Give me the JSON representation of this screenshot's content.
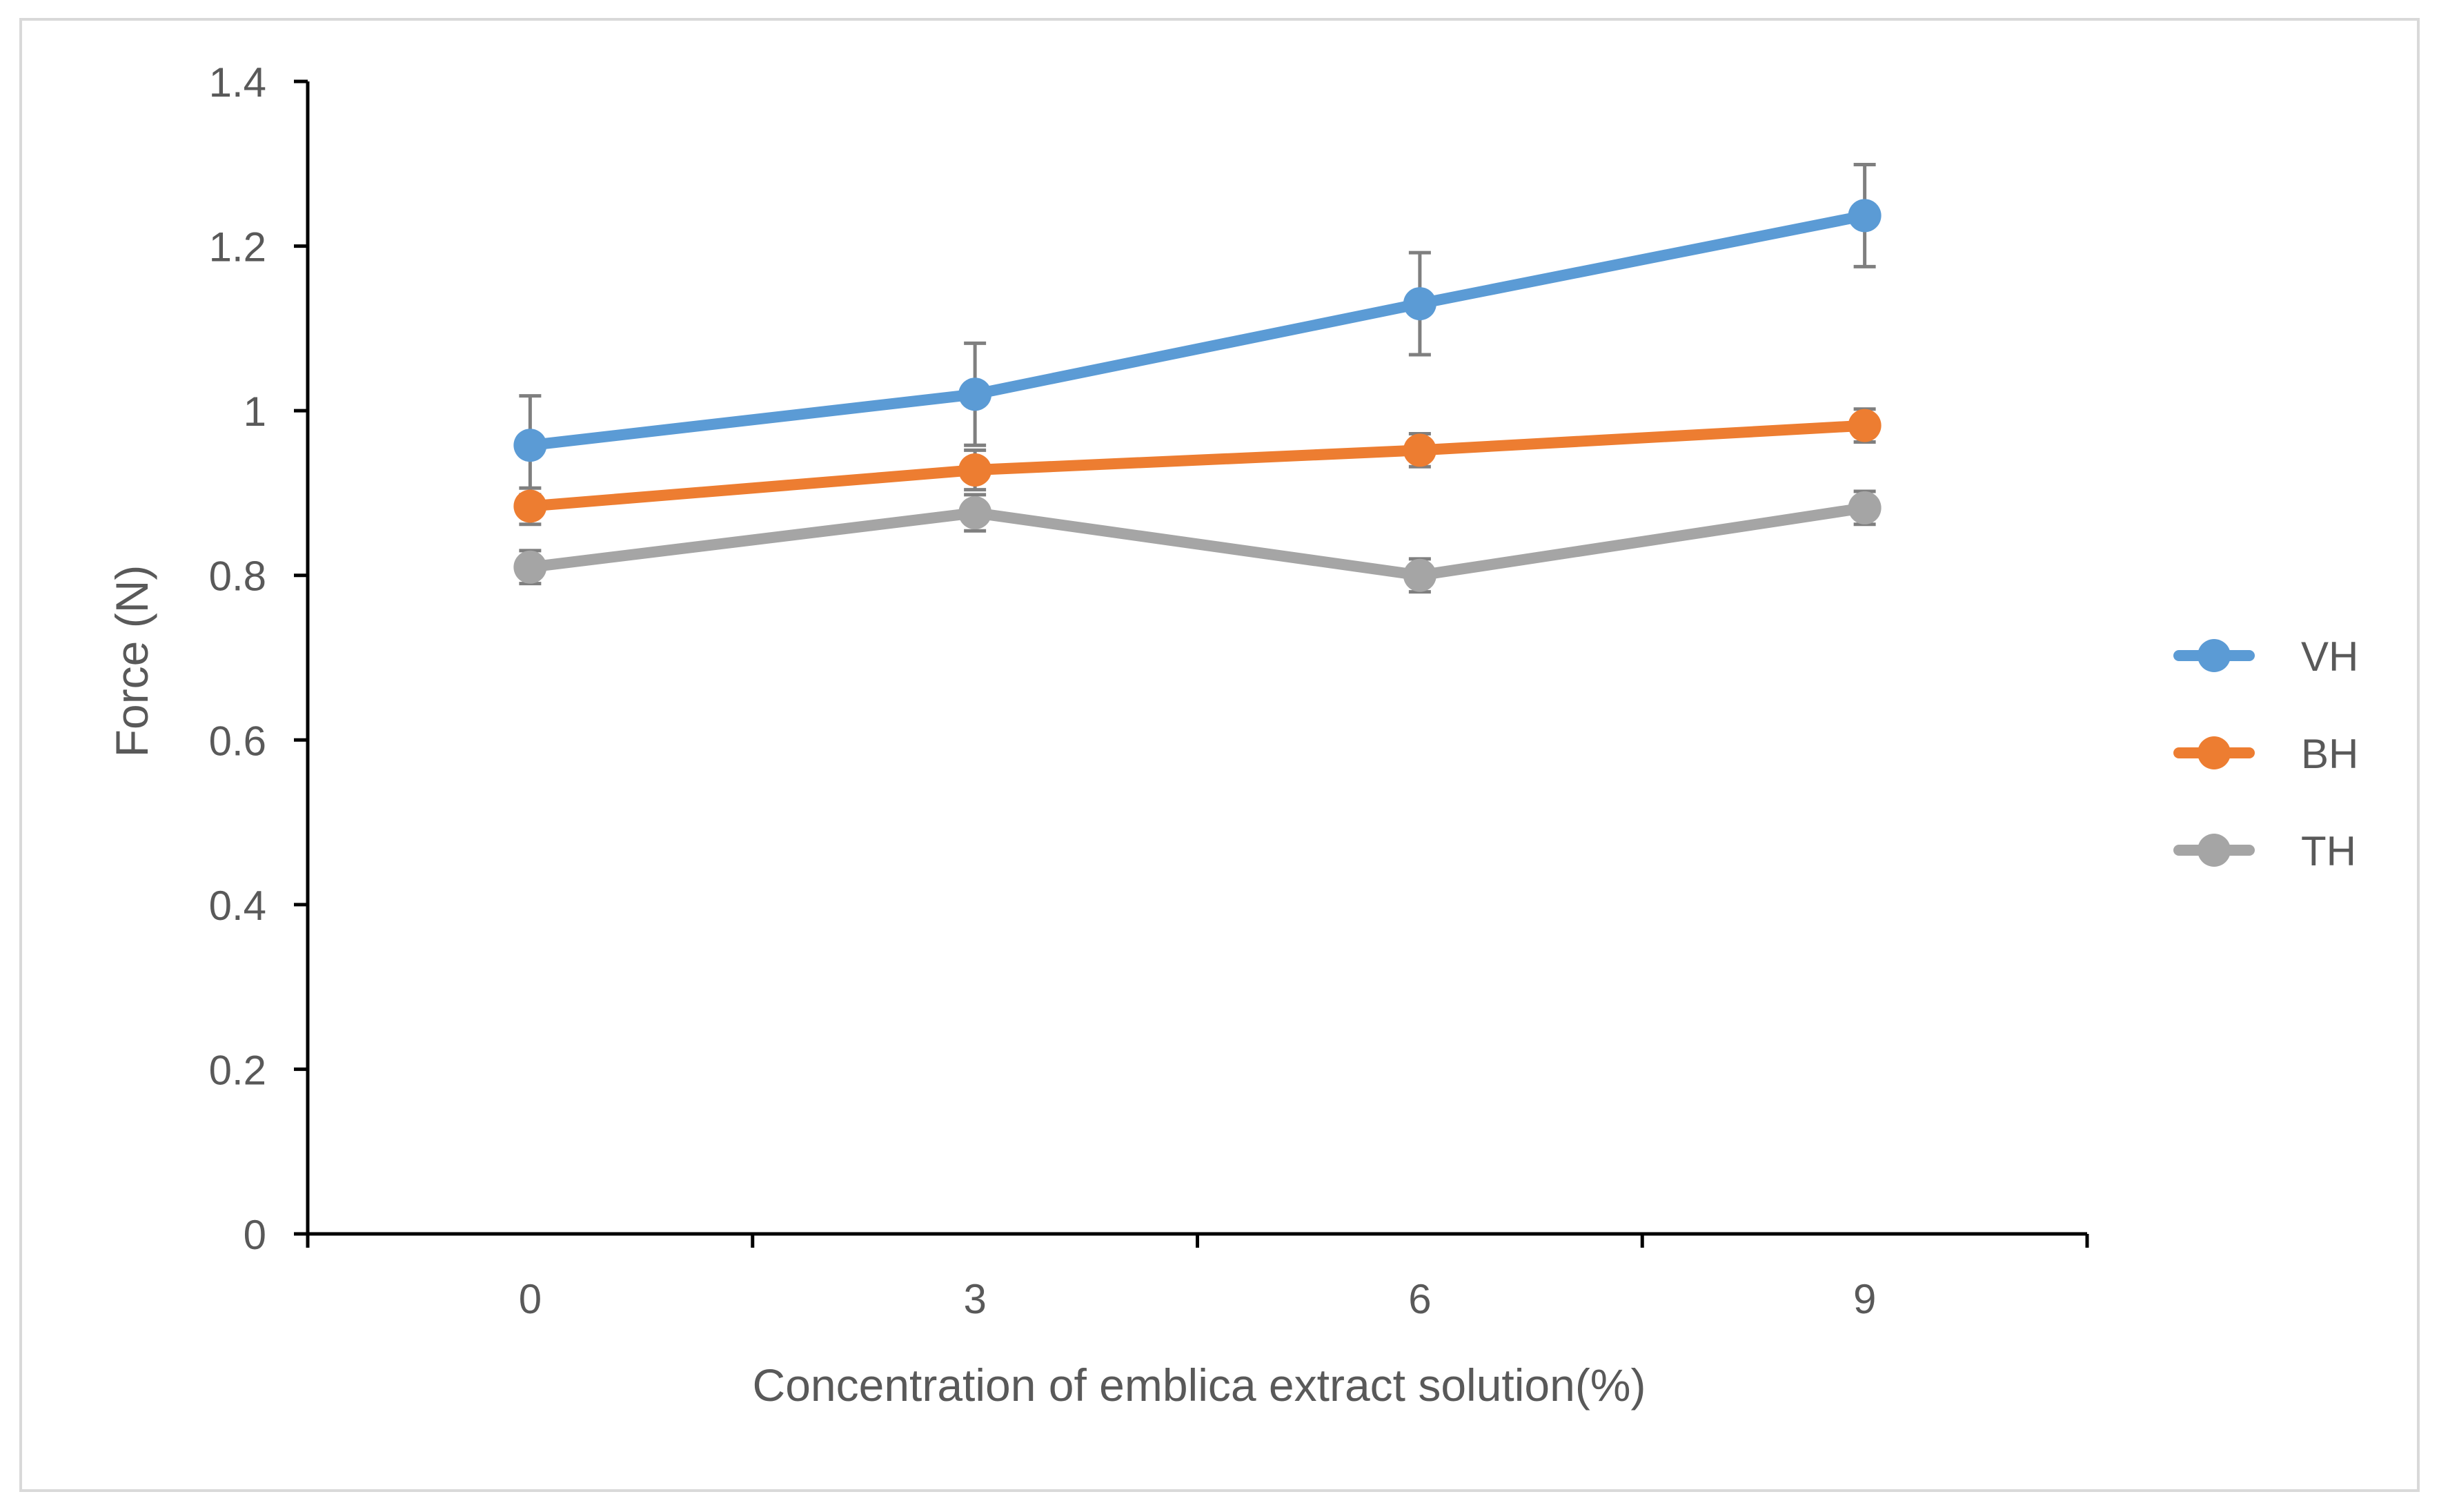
{
  "chart_data": {
    "type": "line",
    "title": "",
    "xlabel": "Concentration of emblica extract solution(%)",
    "ylabel": "Force (N)",
    "categories": [
      "0",
      "3",
      "6",
      "9"
    ],
    "ylim": [
      0,
      1.4
    ],
    "yticks": [
      "0",
      "0.2",
      "0.4",
      "0.6",
      "0.8",
      "1",
      "1.2",
      "1.4"
    ],
    "legend_position": "right",
    "grid": false,
    "series": [
      {
        "name": "VH",
        "color": "#5b9bd5",
        "values": [
          0.958,
          1.02,
          1.13,
          1.237
        ],
        "errors": [
          0.06,
          0.062,
          0.062,
          0.062
        ]
      },
      {
        "name": "BH",
        "color": "#ed7d31",
        "values": [
          0.884,
          0.928,
          0.952,
          0.982
        ],
        "errors": [
          0.022,
          0.024,
          0.02,
          0.02
        ]
      },
      {
        "name": "TH",
        "color": "#a5a5a5",
        "values": [
          0.81,
          0.876,
          0.8,
          0.882
        ],
        "errors": [
          0.02,
          0.022,
          0.02,
          0.02
        ]
      }
    ]
  }
}
